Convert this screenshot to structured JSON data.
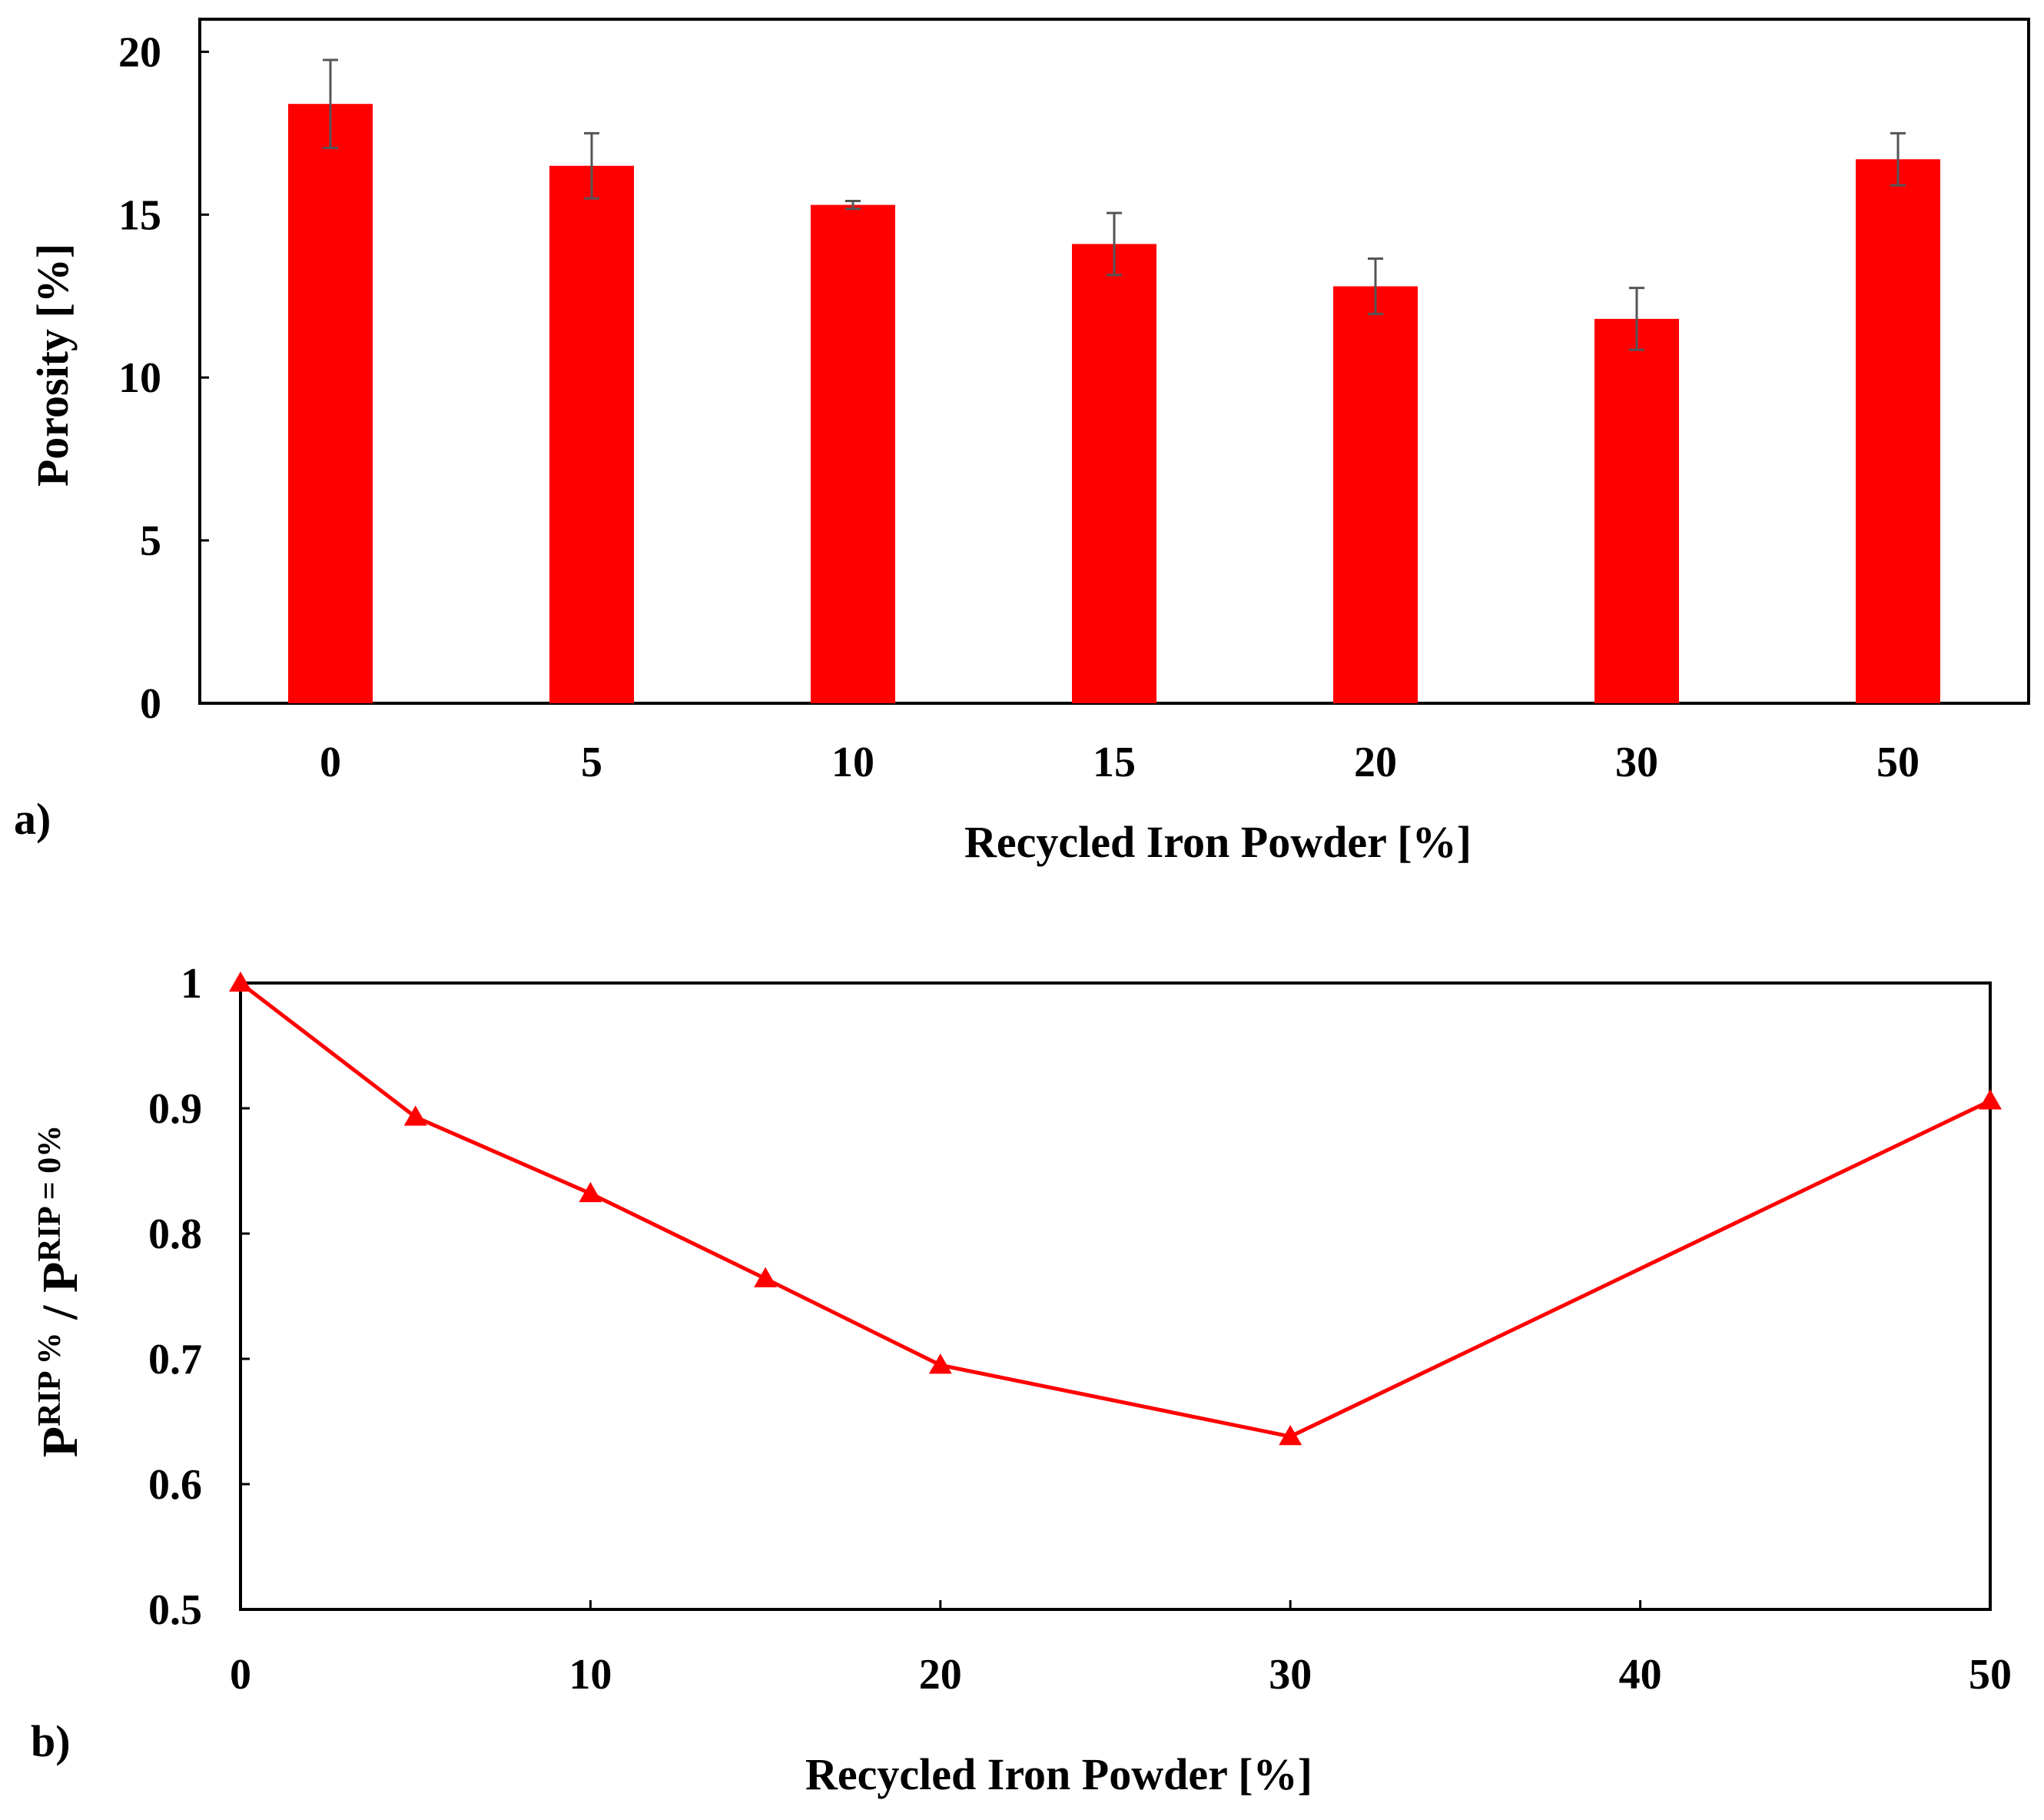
{
  "chart_data": [
    {
      "type": "bar",
      "panel_label": "a)",
      "xlabel": "Recycled Iron Powder [%]",
      "ylabel": "Porosity [%]",
      "categories": [
        "0",
        "5",
        "10",
        "15",
        "20",
        "30",
        "50"
      ],
      "values": [
        18.4,
        16.5,
        15.3,
        14.1,
        12.8,
        11.8,
        16.7
      ],
      "errors": [
        1.35,
        1.0,
        0.12,
        0.95,
        0.85,
        0.95,
        0.8
      ],
      "ylim": [
        0,
        21
      ],
      "yticks": [
        0,
        5,
        10,
        15,
        20
      ],
      "color": "#ff0000",
      "error_color": "#555555"
    },
    {
      "type": "line",
      "panel_label": "b)",
      "xlabel": "Recycled Iron Powder [%]",
      "ylabel_parts": {
        "p1": "P",
        "sup1": "RIP %",
        "slash": " / ",
        "p2": "P",
        "sup2": "RIP = 0%"
      },
      "x": [
        0,
        5,
        10,
        15,
        20,
        30,
        50
      ],
      "y": [
        1.0,
        0.893,
        0.832,
        0.764,
        0.695,
        0.638,
        0.906
      ],
      "xlim": [
        0,
        50
      ],
      "ylim": [
        0.5,
        1.0
      ],
      "xticks": [
        0,
        10,
        20,
        30,
        40,
        50
      ],
      "yticks": [
        0.5,
        0.6,
        0.7,
        0.8,
        0.9,
        1
      ],
      "marker": "triangle",
      "color": "#ff0000"
    }
  ]
}
